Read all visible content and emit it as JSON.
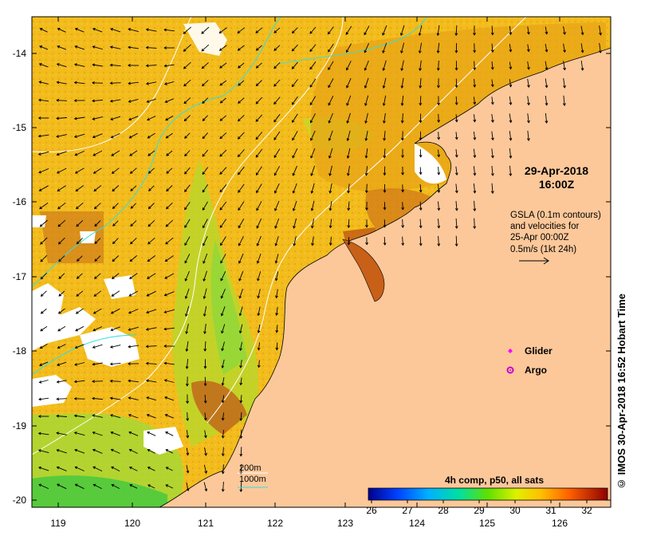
{
  "map": {
    "x_ticks": [
      "119",
      "120",
      "121",
      "122",
      "123",
      "124",
      "125",
      "126"
    ],
    "y_ticks": [
      "-14",
      "-15",
      "-16",
      "-17",
      "-18",
      "-19",
      "-20"
    ],
    "lon_range": [
      118.6,
      126.75
    ],
    "lat_range": [
      -20.1,
      -13.5
    ]
  },
  "annotations": {
    "date_line1": "29-Apr-2018",
    "date_line2": "16:00Z",
    "gsla_lines": [
      "GSLA (0.1m contours)",
      "and velocities for",
      "25-Apr 00:00Z",
      "0.5m/s (1kt 24h)"
    ],
    "glider_label": "Glider",
    "argo_label": "Argo",
    "credit": "© IMOS 30-Apr-2018 16:52 Hobart Time",
    "contour_200": "200m",
    "contour_1000": "1000m"
  },
  "colorbar": {
    "title": "4h comp, p50, all sats",
    "ticks": [
      "26",
      "27",
      "28",
      "29",
      "30",
      "31",
      "32"
    ],
    "range": [
      26,
      32.6
    ],
    "colors": [
      "#00008f",
      "#0050ff",
      "#00d0ff",
      "#20e060",
      "#a0f000",
      "#ffe000",
      "#ff9000",
      "#e04000",
      "#8f0000"
    ]
  },
  "colors": {
    "land": "#fcc89a",
    "sst_warm": "#f0a818",
    "sst_mid": "#f2c21a",
    "sst_cool": "#c4dc2a",
    "sst_green": "#8ad83a",
    "sst_hot": "#c86018",
    "contour_200": "#ffffff",
    "contour_1000": "#30e0e0",
    "glider": "#ff00ff",
    "argo": "#cc00cc"
  }
}
